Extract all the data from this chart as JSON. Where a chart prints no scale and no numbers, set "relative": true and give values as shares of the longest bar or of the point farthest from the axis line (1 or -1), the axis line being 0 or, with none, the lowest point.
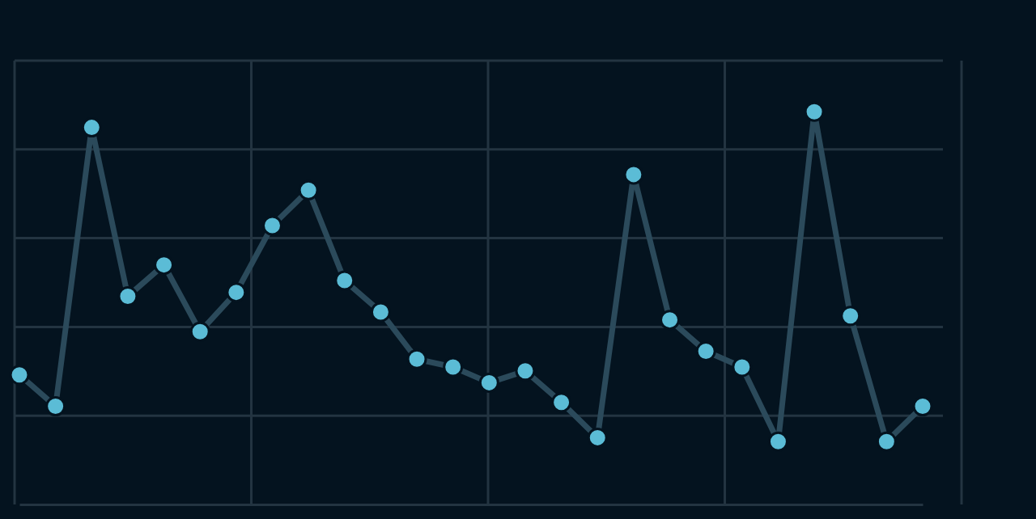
{
  "chart_data": {
    "type": "line",
    "relative": true,
    "grid": true,
    "marker": "circle",
    "categories": [
      null,
      null,
      null,
      null,
      null,
      null,
      null,
      null,
      null,
      null,
      null,
      null,
      null,
      null,
      null,
      null,
      null,
      null,
      null,
      null,
      null,
      null,
      null,
      null,
      null,
      null
    ],
    "series": [
      {
        "color": "#2b4a5b",
        "colors": [
          "#5bbcd6",
          "#5bbcd6",
          "#5bbcd6",
          "#5bbcd6",
          "#5bbcd6",
          "#5bbcd6",
          "#5bbcd6",
          "#5bbcd6",
          "#5bbcd6",
          "#5bbcd6",
          "#5bbcd6",
          "#5bbcd6",
          "#5bbcd6",
          "#5bbcd6",
          "#5bbcd6",
          "#5bbcd6",
          "#5bbcd6",
          "#5bbcd6",
          "#5bbcd6",
          "#5bbcd6",
          "#5bbcd6",
          "#5bbcd6",
          "#5bbcd6",
          "#5bbcd6",
          "#5bbcd6",
          "#5bbcd6"
        ],
        "values": [
          0.33,
          0.25,
          0.96,
          0.53,
          0.61,
          0.44,
          0.54,
          0.71,
          0.8,
          0.57,
          0.49,
          0.37,
          0.35,
          0.31,
          0.34,
          0.26,
          0.17,
          0.84,
          0.47,
          0.39,
          0.35,
          0.16,
          1,
          0.48,
          0.16,
          0.25
        ]
      }
    ]
  }
}
